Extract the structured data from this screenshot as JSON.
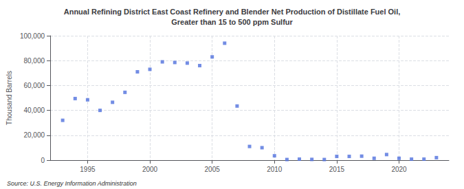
{
  "chart_data": {
    "type": "scatter",
    "title": "Annual Refining District East Coast Refinery and Blender Net Production of Distillate Fuel Oil,\nGreater than 15 to 500 ppm Sulfur",
    "ylabel": "Thousand Barrels",
    "source": "Source: U.S. Energy Information Administration",
    "marker": "square",
    "x": [
      1993,
      1994,
      1995,
      1996,
      1997,
      1998,
      1999,
      2000,
      2001,
      2002,
      2003,
      2004,
      2005,
      2006,
      2007,
      2008,
      2009,
      2010,
      2011,
      2012,
      2013,
      2014,
      2015,
      2016,
      2017,
      2018,
      2019,
      2020,
      2021,
      2022,
      2023
    ],
    "values": [
      32000,
      49500,
      48500,
      40000,
      46500,
      54500,
      71000,
      73000,
      79000,
      78500,
      78000,
      76000,
      83000,
      94000,
      43500,
      11000,
      10000,
      3500,
      500,
      800,
      600,
      500,
      3000,
      3000,
      3200,
      1500,
      4500,
      1500,
      800,
      800,
      2000
    ],
    "xlim": [
      1992,
      2024
    ],
    "xticks": [
      1995,
      2000,
      2005,
      2010,
      2015,
      2020
    ],
    "ylim": [
      0,
      100000
    ],
    "yticks": [
      0,
      {
        "value": 20000,
        "label": "20,000"
      },
      {
        "value": 40000,
        "label": "40,000"
      },
      {
        "value": 60000,
        "label": "60,000"
      },
      {
        "value": 80000,
        "label": "80,000"
      },
      {
        "value": 100000,
        "label": "100,000"
      }
    ],
    "grid": true
  }
}
